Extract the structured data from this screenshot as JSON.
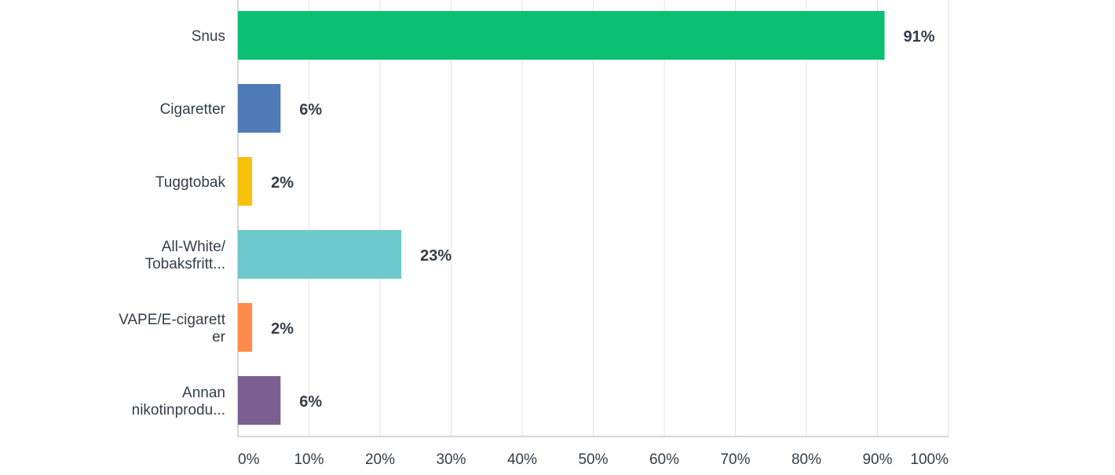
{
  "chart_data": {
    "type": "bar",
    "orientation": "horizontal",
    "categories": [
      [
        "Snus"
      ],
      [
        "Cigaretter"
      ],
      [
        "Tuggtobak"
      ],
      [
        "All-White/",
        "Tobaksfritt..."
      ],
      [
        "VAPE/E-cigarett",
        "er"
      ],
      [
        "Annan",
        "nikotinprodu..."
      ]
    ],
    "values": [
      91,
      6,
      2,
      23,
      2,
      6
    ],
    "value_labels": [
      "91%",
      "6%",
      "2%",
      "23%",
      "2%",
      "6%"
    ],
    "colors": [
      "#0bbf73",
      "#4f7ab8",
      "#f7c00d",
      "#6cc8cc",
      "#ff8a4c",
      "#7c5f90"
    ],
    "xlim": [
      0,
      100
    ],
    "xticks": [
      0,
      10,
      20,
      30,
      40,
      50,
      60,
      70,
      80,
      90,
      100
    ],
    "xtick_labels": [
      "0%",
      "10%",
      "20%",
      "30%",
      "40%",
      "50%",
      "60%",
      "70%",
      "80%",
      "90%",
      "100%"
    ],
    "grid": true,
    "title": "",
    "xlabel": "",
    "ylabel": ""
  }
}
